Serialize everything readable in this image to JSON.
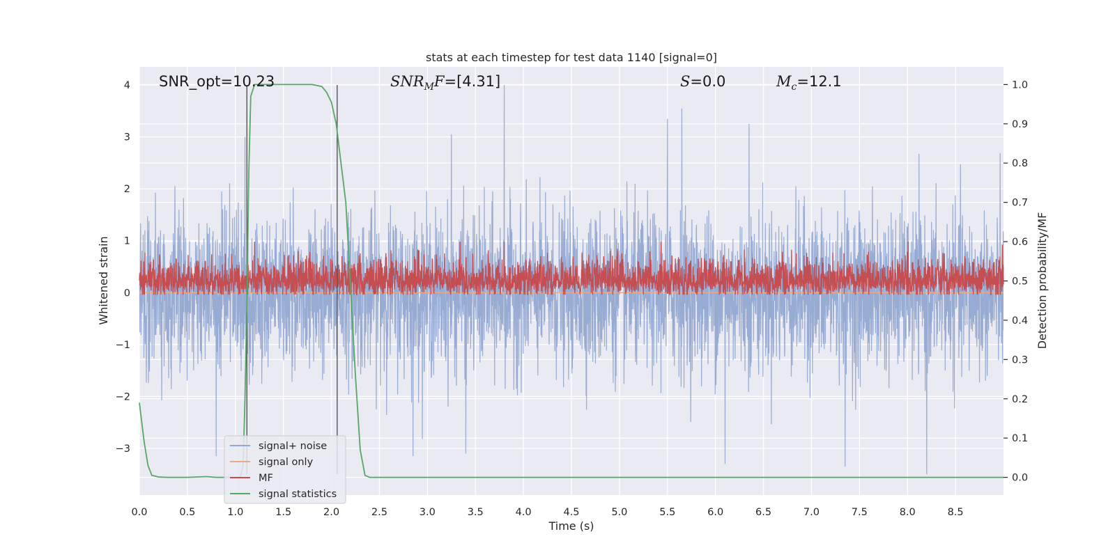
{
  "chart_data": {
    "type": "line",
    "title": "stats at each timestep for test data 1140 [signal=0]",
    "xlabel": "Time (s)",
    "ylabel": "Whitened strain",
    "y2label": "Detection probability/MF",
    "xlim": [
      0,
      9.0
    ],
    "ylim": [
      -3.9,
      4.35
    ],
    "y2lim": [
      -0.045,
      1.045
    ],
    "xticks": [
      "0.0",
      "0.5",
      "1.0",
      "1.5",
      "2.0",
      "2.5",
      "3.0",
      "3.5",
      "4.0",
      "4.5",
      "5.0",
      "5.5",
      "6.0",
      "6.5",
      "7.0",
      "7.5",
      "8.0",
      "8.5"
    ],
    "xtick_values": [
      0,
      0.5,
      1.0,
      1.5,
      2.0,
      2.5,
      3.0,
      3.5,
      4.0,
      4.5,
      5.0,
      5.5,
      6.0,
      6.5,
      7.0,
      7.5,
      8.0,
      8.5
    ],
    "yticks": [
      "−3",
      "−2",
      "−1",
      "0",
      "1",
      "2",
      "3",
      "4"
    ],
    "ytick_values": [
      -3,
      -2,
      -1,
      0,
      1,
      2,
      3,
      4
    ],
    "y2ticks": [
      "0.0",
      "0.1",
      "0.2",
      "0.3",
      "0.4",
      "0.5",
      "0.6",
      "0.7",
      "0.8",
      "0.9",
      "1.0"
    ],
    "y2tick_values": [
      0,
      0.1,
      0.2,
      0.3,
      0.4,
      0.5,
      0.6,
      0.7,
      0.8,
      0.9,
      1.0
    ],
    "grid": true,
    "legend_position": "lower-left",
    "annotations": {
      "snr_opt": "SNR_opt=10.23",
      "snr_mf_main": "SNR",
      "snr_mf_sub": "M",
      "snr_mf_rest": "F",
      "snr_mf_value": "=[4.31]",
      "s_symbol": "S",
      "s_value": "=0.0",
      "mc_symbol": "M",
      "mc_sub": "c",
      "mc_value": "=12.1"
    },
    "vertical_lines_x": [
      1.12,
      2.06
    ],
    "series": [
      {
        "name": "signal+ noise",
        "color": "#92a8d1",
        "axis": "left",
        "kind": "noise",
        "sample_rate_hz": 400,
        "upper_envelope_typical": [
          1.7,
          2.6
        ],
        "upper_peak_values": [
          {
            "x": 3.8,
            "y": 4.0
          },
          {
            "x": 1.1,
            "y": 3.0
          },
          {
            "x": 5.65,
            "y": 3.55
          },
          {
            "x": 5.5,
            "y": 3.35
          },
          {
            "x": 6.35,
            "y": 3.25
          },
          {
            "x": 8.2,
            "y": 3.05
          },
          {
            "x": 3.25,
            "y": 3.05
          }
        ],
        "lower_envelope_typical": [
          -1.5,
          -2.4
        ],
        "lower_peak_values": [
          {
            "x": 8.2,
            "y": -3.5
          },
          {
            "x": 7.35,
            "y": -3.35
          },
          {
            "x": 6.1,
            "y": -3.3
          },
          {
            "x": 2.85,
            "y": -3.15
          },
          {
            "x": 3.4,
            "y": -3.1
          },
          {
            "x": 0.8,
            "y": -3.15
          }
        ]
      },
      {
        "name": "signal only",
        "color": "#e8a987",
        "axis": "left",
        "kind": "flat",
        "value": 0
      },
      {
        "name": "MF",
        "color": "#c44e52",
        "axis": "right",
        "kind": "band",
        "baseline": 0.5,
        "upper_typical": 0.55,
        "lower_typical": 0.47,
        "upper_peak_values": [
          {
            "x": 1.2,
            "y": 0.6
          },
          {
            "x": 3.8,
            "y": 0.6
          },
          {
            "x": 2.9,
            "y": 0.58
          },
          {
            "x": 6.3,
            "y": 0.58
          }
        ]
      },
      {
        "name": "signal statistics",
        "color": "#55a868",
        "axis": "right",
        "kind": "curve",
        "x": [
          0.0,
          0.05,
          0.09,
          0.13,
          0.2,
          0.3,
          0.5,
          0.7,
          0.8,
          0.9,
          1.0,
          1.05,
          1.08,
          1.1,
          1.12,
          1.14,
          1.16,
          1.2,
          1.5,
          1.8,
          1.9,
          1.95,
          2.0,
          2.05,
          2.1,
          2.15,
          2.2,
          2.25,
          2.3,
          2.35,
          2.4,
          3.0,
          4.0,
          5.0,
          6.0,
          7.0,
          8.0,
          9.0
        ],
        "y": [
          0.19,
          0.09,
          0.03,
          0.005,
          0.001,
          0.0,
          0.0,
          0.002,
          0.0,
          0.0,
          0.0,
          0.0,
          0.03,
          0.2,
          0.45,
          0.78,
          0.97,
          1.0,
          1.0,
          1.0,
          0.995,
          0.98,
          0.955,
          0.9,
          0.8,
          0.7,
          0.48,
          0.26,
          0.07,
          0.005,
          0.0,
          0.0,
          0.0,
          0.0,
          0.0,
          0.0,
          0.0,
          0.0
        ]
      }
    ]
  }
}
